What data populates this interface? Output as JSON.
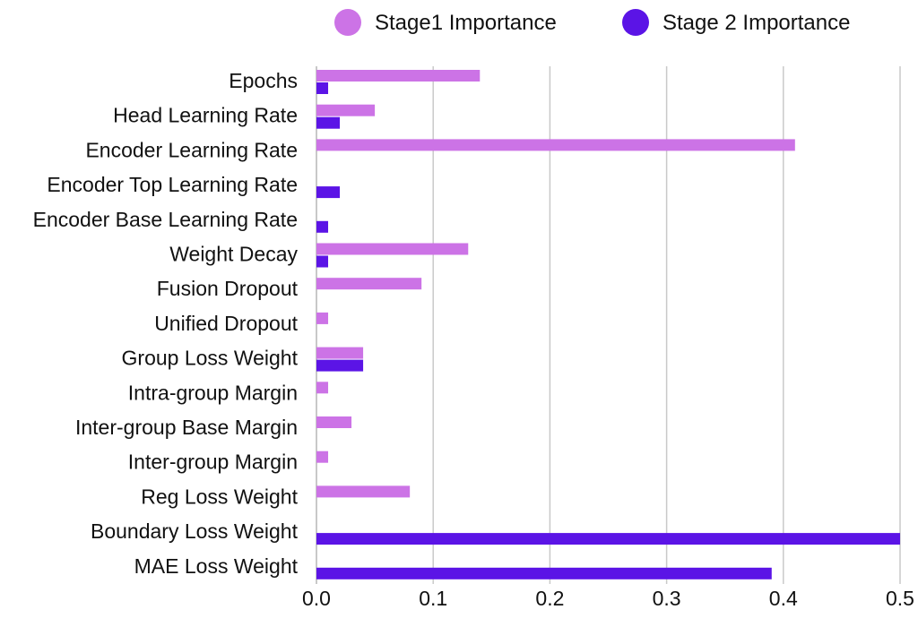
{
  "chart_data": {
    "type": "bar",
    "orientation": "horizontal",
    "title": "",
    "xlabel": "",
    "ylabel": "",
    "xlim": [
      0,
      0.5
    ],
    "x_ticks": [
      "0.0",
      "0.1",
      "0.2",
      "0.3",
      "0.4",
      "0.5"
    ],
    "x_tick_values": [
      0.0,
      0.1,
      0.2,
      0.3,
      0.4,
      0.5
    ],
    "grid": "vertical",
    "legend_position": "top",
    "categories": [
      "Epochs",
      "Head Learning Rate",
      "Encoder Learning Rate",
      "Encoder Top Learning Rate",
      "Encoder Base Learning Rate",
      "Weight Decay",
      "Fusion Dropout",
      "Unified Dropout",
      "Group Loss Weight",
      "Intra-group Margin",
      "Inter-group Base Margin",
      "Inter-group Margin",
      "Reg Loss Weight",
      "Boundary Loss Weight",
      "MAE Loss Weight"
    ],
    "series": [
      {
        "name": "Stage1 Importance",
        "color": "#cc73e6",
        "values": [
          0.14,
          0.05,
          0.41,
          0.0,
          0.0,
          0.13,
          0.09,
          0.01,
          0.04,
          0.01,
          0.03,
          0.01,
          0.08,
          0.0,
          0.0
        ]
      },
      {
        "name": "Stage 2 Importance",
        "color": "#5b14e6",
        "values": [
          0.01,
          0.02,
          0.0,
          0.02,
          0.01,
          0.01,
          0.0,
          0.0,
          0.04,
          0.0,
          0.0,
          0.0,
          0.0,
          0.5,
          0.39
        ]
      }
    ]
  }
}
